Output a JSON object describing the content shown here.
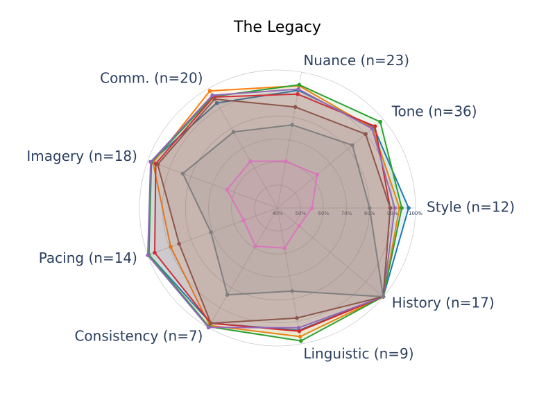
{
  "chart_data": {
    "type": "radar",
    "title": "The Legacy",
    "categories": [
      "Style (n=12)",
      "Tone (n=36)",
      "Nuance (n=23)",
      "Comm. (n=20)",
      "Imagery (n=18)",
      "Pacing (n=14)",
      "Consistency (n=7)",
      "Linguistic (n=9)",
      "History (n=17)"
    ],
    "rlim": [
      40,
      100
    ],
    "rticks": [
      {
        "value": 40,
        "label": "40%"
      },
      {
        "value": 50,
        "label": "50%"
      },
      {
        "value": 60,
        "label": "60%"
      },
      {
        "value": 70,
        "label": "70%"
      },
      {
        "value": 80,
        "label": "80%"
      },
      {
        "value": 90,
        "label": "90%"
      },
      {
        "value": 100,
        "label": "100%"
      }
    ],
    "grid": true,
    "series": [
      {
        "color": "#1f77b4",
        "values": [
          97,
          94.6,
          92,
          92.7,
          98.5,
          99.5,
          97.9,
          94,
          100
        ]
      },
      {
        "color": "#ff7f0e",
        "values": [
          93,
          94,
          94,
          98.8,
          97.6,
          89.4,
          99,
          96.8,
          100
        ]
      },
      {
        "color": "#2ca02c",
        "values": [
          94,
          98.3,
          94.4,
          96,
          98.3,
          99.5,
          99.6,
          98.7,
          100
        ]
      },
      {
        "color": "#d62728",
        "values": [
          89,
          95.3,
          90.3,
          95.7,
          96.3,
          96.8,
          97.9,
          94.4,
          100
        ]
      },
      {
        "color": "#9467bd",
        "values": [
          91,
          93.7,
          92.5,
          96.6,
          98.7,
          100,
          100,
          92.9,
          100
        ]
      },
      {
        "color": "#8c564b",
        "values": [
          89,
          90,
          84.6,
          94.7,
          95.4,
          85.5,
          97.9,
          88.6,
          100
        ]
      },
      {
        "color": "#e377c2",
        "values": [
          55,
          62.6,
          60.7,
          63.5,
          63.4,
          55.7,
          59.2,
          57.7,
          52.2
        ]
      },
      {
        "color": "#7f7f7f",
        "values": [
          80,
          82.5,
          76.7,
          78.2,
          83.8,
          70.8,
          83.6,
          76.7,
          100
        ]
      }
    ]
  }
}
